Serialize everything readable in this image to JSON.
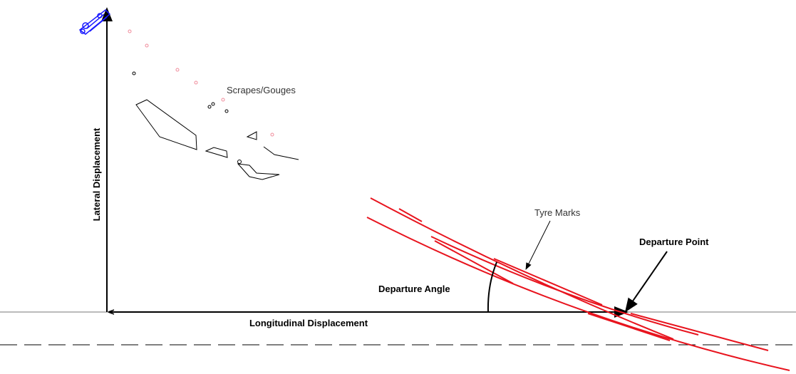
{
  "labels": {
    "lateral": "Lateral Displacement",
    "longitudinal": "Longitudinal Displacement",
    "scrapes": "Scrapes/Gouges",
    "tyre_marks": "Tyre Marks",
    "departure_point": "Departure Point",
    "departure_angle": "Departure Angle"
  }
}
